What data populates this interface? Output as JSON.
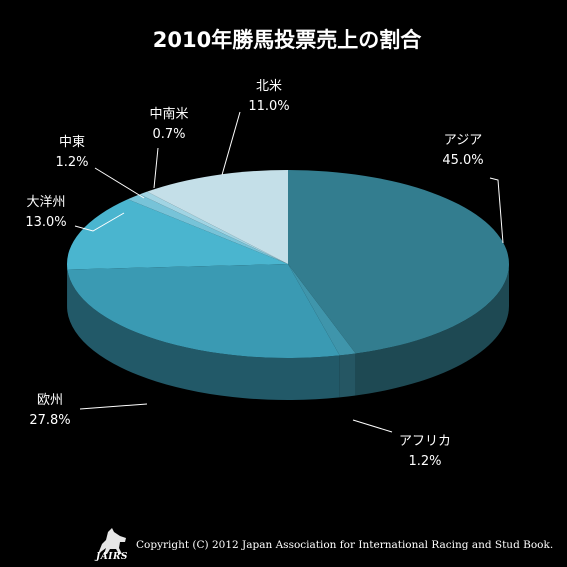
{
  "chart_data": {
    "type": "pie",
    "title": "2010年勝馬投票売上の割合",
    "slices": [
      {
        "label": "アジア",
        "value": 45.0,
        "value_label": "45.0%",
        "color": "#337d8f"
      },
      {
        "label": "アフリカ",
        "value": 1.2,
        "value_label": "1.2%",
        "color": "#3f95ab"
      },
      {
        "label": "欧州",
        "value": 27.8,
        "value_label": "27.8%",
        "color": "#3a9ab3"
      },
      {
        "label": "大洋州",
        "value": 13.0,
        "value_label": "13.0%",
        "color": "#4ab5cf"
      },
      {
        "label": "中東",
        "value": 1.2,
        "value_label": "1.2%",
        "color": "#77c3d8"
      },
      {
        "label": "中南米",
        "value": 0.7,
        "value_label": "0.7%",
        "color": "#a1d4e3"
      },
      {
        "label": "北米",
        "value": 11.0,
        "value_label": "11.0%",
        "color": "#c4dfe8"
      }
    ],
    "legend": "none",
    "style": "3d"
  },
  "footer": {
    "copyright": "Copyright (C) 2012 Japan Association for International Racing and Stud Book.",
    "logo_text": "JAIRS"
  }
}
